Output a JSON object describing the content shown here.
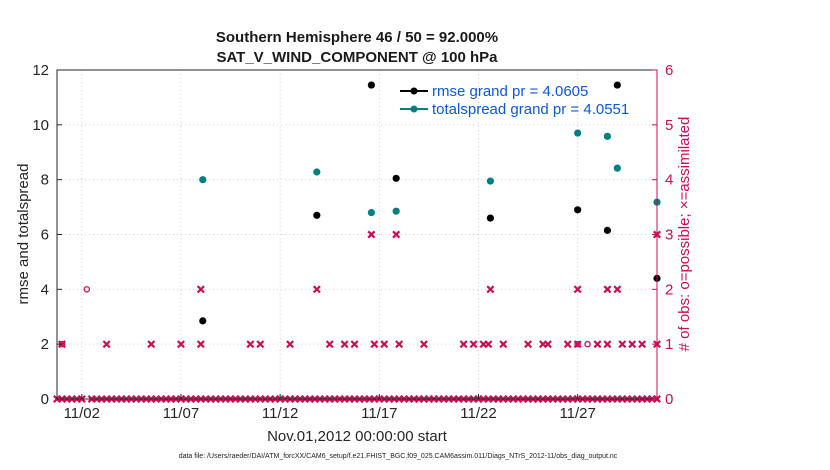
{
  "chart_data": {
    "type": "scatter",
    "title": "Southern Hemisphere 46 / 50 = 92.000%",
    "subtitle": "SAT_V_WIND_COMPONENT @ 100 hPa",
    "xlabel": "Nov.01,2012 00:00:00 start",
    "ylabel_left": "rmse and totalspread",
    "ylabel_right": "# of obs: o=possible; ×=assimilated",
    "x_ticks": [
      {
        "day": 2,
        "label": "11/02"
      },
      {
        "day": 7,
        "label": "11/07"
      },
      {
        "day": 12,
        "label": "11/12"
      },
      {
        "day": 17,
        "label": "11/17"
      },
      {
        "day": 22,
        "label": "11/22"
      },
      {
        "day": 27,
        "label": "11/27"
      }
    ],
    "xlim": [
      0.75,
      31.0
    ],
    "ylim_left": [
      0,
      12
    ],
    "ylim_right": [
      0,
      6
    ],
    "y_ticks_left": [
      "0",
      "2",
      "4",
      "6",
      "8",
      "10",
      "12"
    ],
    "y_ticks_right": [
      "0",
      "1",
      "2",
      "3",
      "4",
      "5",
      "6"
    ],
    "footnote": "data file: /Users/raeder/DAI/ATM_forcXX/CAM6_setup/f.e21.FHIST_BGC.f09_025.CAM6assim.011/Diags_NTrS_2012-11/obs_diag_output.nc",
    "legend": [
      {
        "label": "rmse grand pr = 4.0605",
        "color": "#000000"
      },
      {
        "label": "totalspread grand pr = 4.0551",
        "color": "#008080"
      }
    ],
    "series": [
      {
        "name": "rmse",
        "axis": "left",
        "color": "#000000",
        "points": [
          [
            8.1,
            2.85
          ],
          [
            13.85,
            6.7
          ],
          [
            16.6,
            11.45
          ],
          [
            17.85,
            8.05
          ],
          [
            22.6,
            6.6
          ],
          [
            27.0,
            6.9
          ],
          [
            28.5,
            6.15
          ],
          [
            29.0,
            11.45
          ],
          [
            31.0,
            4.4
          ]
        ]
      },
      {
        "name": "totalspread",
        "axis": "left",
        "color": "#008080",
        "points": [
          [
            8.1,
            8.0
          ],
          [
            13.85,
            8.28
          ],
          [
            16.6,
            6.8
          ],
          [
            17.85,
            6.85
          ],
          [
            22.6,
            7.95
          ],
          [
            27.0,
            9.7
          ],
          [
            28.5,
            9.58
          ],
          [
            29.0,
            8.42
          ],
          [
            31.0,
            7.18
          ]
        ]
      },
      {
        "name": "possible obs",
        "axis": "right",
        "color": "#cc0d55",
        "points": [
          [
            1.0,
            1
          ],
          [
            2.25,
            2
          ],
          [
            27.0,
            1
          ],
          [
            27.5,
            1
          ]
        ]
      },
      {
        "name": "assimilated obs",
        "axis": "right",
        "color": "#cc0d55",
        "points": [
          [
            0.75,
            0
          ],
          [
            1.0,
            0
          ],
          [
            1.25,
            0
          ],
          [
            1.5,
            0
          ],
          [
            1.75,
            0
          ],
          [
            2.0,
            0
          ],
          [
            2.5,
            0
          ],
          [
            2.75,
            0
          ],
          [
            3.0,
            0
          ],
          [
            3.25,
            0
          ],
          [
            3.5,
            0
          ],
          [
            3.75,
            0
          ],
          [
            4.0,
            0
          ],
          [
            4.25,
            0
          ],
          [
            4.5,
            0
          ],
          [
            4.75,
            0
          ],
          [
            5.0,
            0
          ],
          [
            5.25,
            0
          ],
          [
            5.5,
            0
          ],
          [
            5.75,
            0
          ],
          [
            6.0,
            0
          ],
          [
            6.25,
            0
          ],
          [
            6.5,
            0
          ],
          [
            6.75,
            0
          ],
          [
            7.0,
            0
          ],
          [
            7.25,
            0
          ],
          [
            7.5,
            0
          ],
          [
            7.75,
            0
          ],
          [
            8.0,
            0
          ],
          [
            8.25,
            0
          ],
          [
            8.5,
            0
          ],
          [
            8.75,
            0
          ],
          [
            9.0,
            0
          ],
          [
            9.25,
            0
          ],
          [
            9.5,
            0
          ],
          [
            9.75,
            0
          ],
          [
            10.0,
            0
          ],
          [
            10.25,
            0
          ],
          [
            10.5,
            0
          ],
          [
            10.75,
            0
          ],
          [
            11.0,
            0
          ],
          [
            11.25,
            0
          ],
          [
            11.5,
            0
          ],
          [
            11.75,
            0
          ],
          [
            12.0,
            0
          ],
          [
            12.25,
            0
          ],
          [
            12.5,
            0
          ],
          [
            12.75,
            0
          ],
          [
            13.0,
            0
          ],
          [
            13.25,
            0
          ],
          [
            13.5,
            0
          ],
          [
            13.75,
            0
          ],
          [
            14.0,
            0
          ],
          [
            14.25,
            0
          ],
          [
            14.5,
            0
          ],
          [
            14.75,
            0
          ],
          [
            15.0,
            0
          ],
          [
            15.25,
            0
          ],
          [
            15.5,
            0
          ],
          [
            15.75,
            0
          ],
          [
            16.0,
            0
          ],
          [
            16.25,
            0
          ],
          [
            16.5,
            0
          ],
          [
            16.75,
            0
          ],
          [
            17.0,
            0
          ],
          [
            17.25,
            0
          ],
          [
            17.5,
            0
          ],
          [
            17.75,
            0
          ],
          [
            18.0,
            0
          ],
          [
            18.25,
            0
          ],
          [
            18.5,
            0
          ],
          [
            18.75,
            0
          ],
          [
            19.0,
            0
          ],
          [
            19.25,
            0
          ],
          [
            19.5,
            0
          ],
          [
            19.75,
            0
          ],
          [
            20.0,
            0
          ],
          [
            20.25,
            0
          ],
          [
            20.5,
            0
          ],
          [
            20.75,
            0
          ],
          [
            21.0,
            0
          ],
          [
            21.25,
            0
          ],
          [
            21.5,
            0
          ],
          [
            21.75,
            0
          ],
          [
            22.0,
            0
          ],
          [
            22.25,
            0
          ],
          [
            22.5,
            0
          ],
          [
            22.75,
            0
          ],
          [
            23.0,
            0
          ],
          [
            23.25,
            0
          ],
          [
            23.5,
            0
          ],
          [
            23.75,
            0
          ],
          [
            24.0,
            0
          ],
          [
            24.25,
            0
          ],
          [
            24.5,
            0
          ],
          [
            24.75,
            0
          ],
          [
            25.0,
            0
          ],
          [
            25.25,
            0
          ],
          [
            25.5,
            0
          ],
          [
            25.75,
            0
          ],
          [
            26.0,
            0
          ],
          [
            26.25,
            0
          ],
          [
            26.5,
            0
          ],
          [
            26.75,
            0
          ],
          [
            27.0,
            0
          ],
          [
            27.25,
            0
          ],
          [
            27.5,
            0
          ],
          [
            27.75,
            0
          ],
          [
            28.0,
            0
          ],
          [
            28.25,
            0
          ],
          [
            28.5,
            0
          ],
          [
            28.75,
            0
          ],
          [
            29.0,
            0
          ],
          [
            29.25,
            0
          ],
          [
            29.5,
            0
          ],
          [
            29.75,
            0
          ],
          [
            30.0,
            0
          ],
          [
            30.25,
            0
          ],
          [
            30.5,
            0
          ],
          [
            30.75,
            0
          ],
          [
            31.0,
            0
          ],
          [
            1.0,
            1
          ],
          [
            3.25,
            1
          ],
          [
            5.5,
            1
          ],
          [
            7.0,
            1
          ],
          [
            8.0,
            1
          ],
          [
            10.5,
            1
          ],
          [
            11.0,
            1
          ],
          [
            12.5,
            1
          ],
          [
            14.5,
            1
          ],
          [
            15.25,
            1
          ],
          [
            15.75,
            1
          ],
          [
            16.75,
            1
          ],
          [
            17.25,
            1
          ],
          [
            18.0,
            1
          ],
          [
            19.25,
            1
          ],
          [
            21.25,
            1
          ],
          [
            21.75,
            1
          ],
          [
            22.25,
            1
          ],
          [
            22.5,
            1
          ],
          [
            23.25,
            1
          ],
          [
            24.5,
            1
          ],
          [
            25.25,
            1
          ],
          [
            25.5,
            1
          ],
          [
            26.5,
            1
          ],
          [
            27.0,
            1
          ],
          [
            28.0,
            1
          ],
          [
            28.5,
            1
          ],
          [
            29.25,
            1
          ],
          [
            29.75,
            1
          ],
          [
            30.25,
            1
          ],
          [
            31.0,
            1
          ],
          [
            8.0,
            2
          ],
          [
            13.85,
            2
          ],
          [
            22.6,
            2
          ],
          [
            27.0,
            2
          ],
          [
            28.5,
            2
          ],
          [
            29.0,
            2
          ],
          [
            16.6,
            3
          ],
          [
            17.85,
            3
          ],
          [
            31.0,
            3
          ]
        ]
      }
    ]
  }
}
